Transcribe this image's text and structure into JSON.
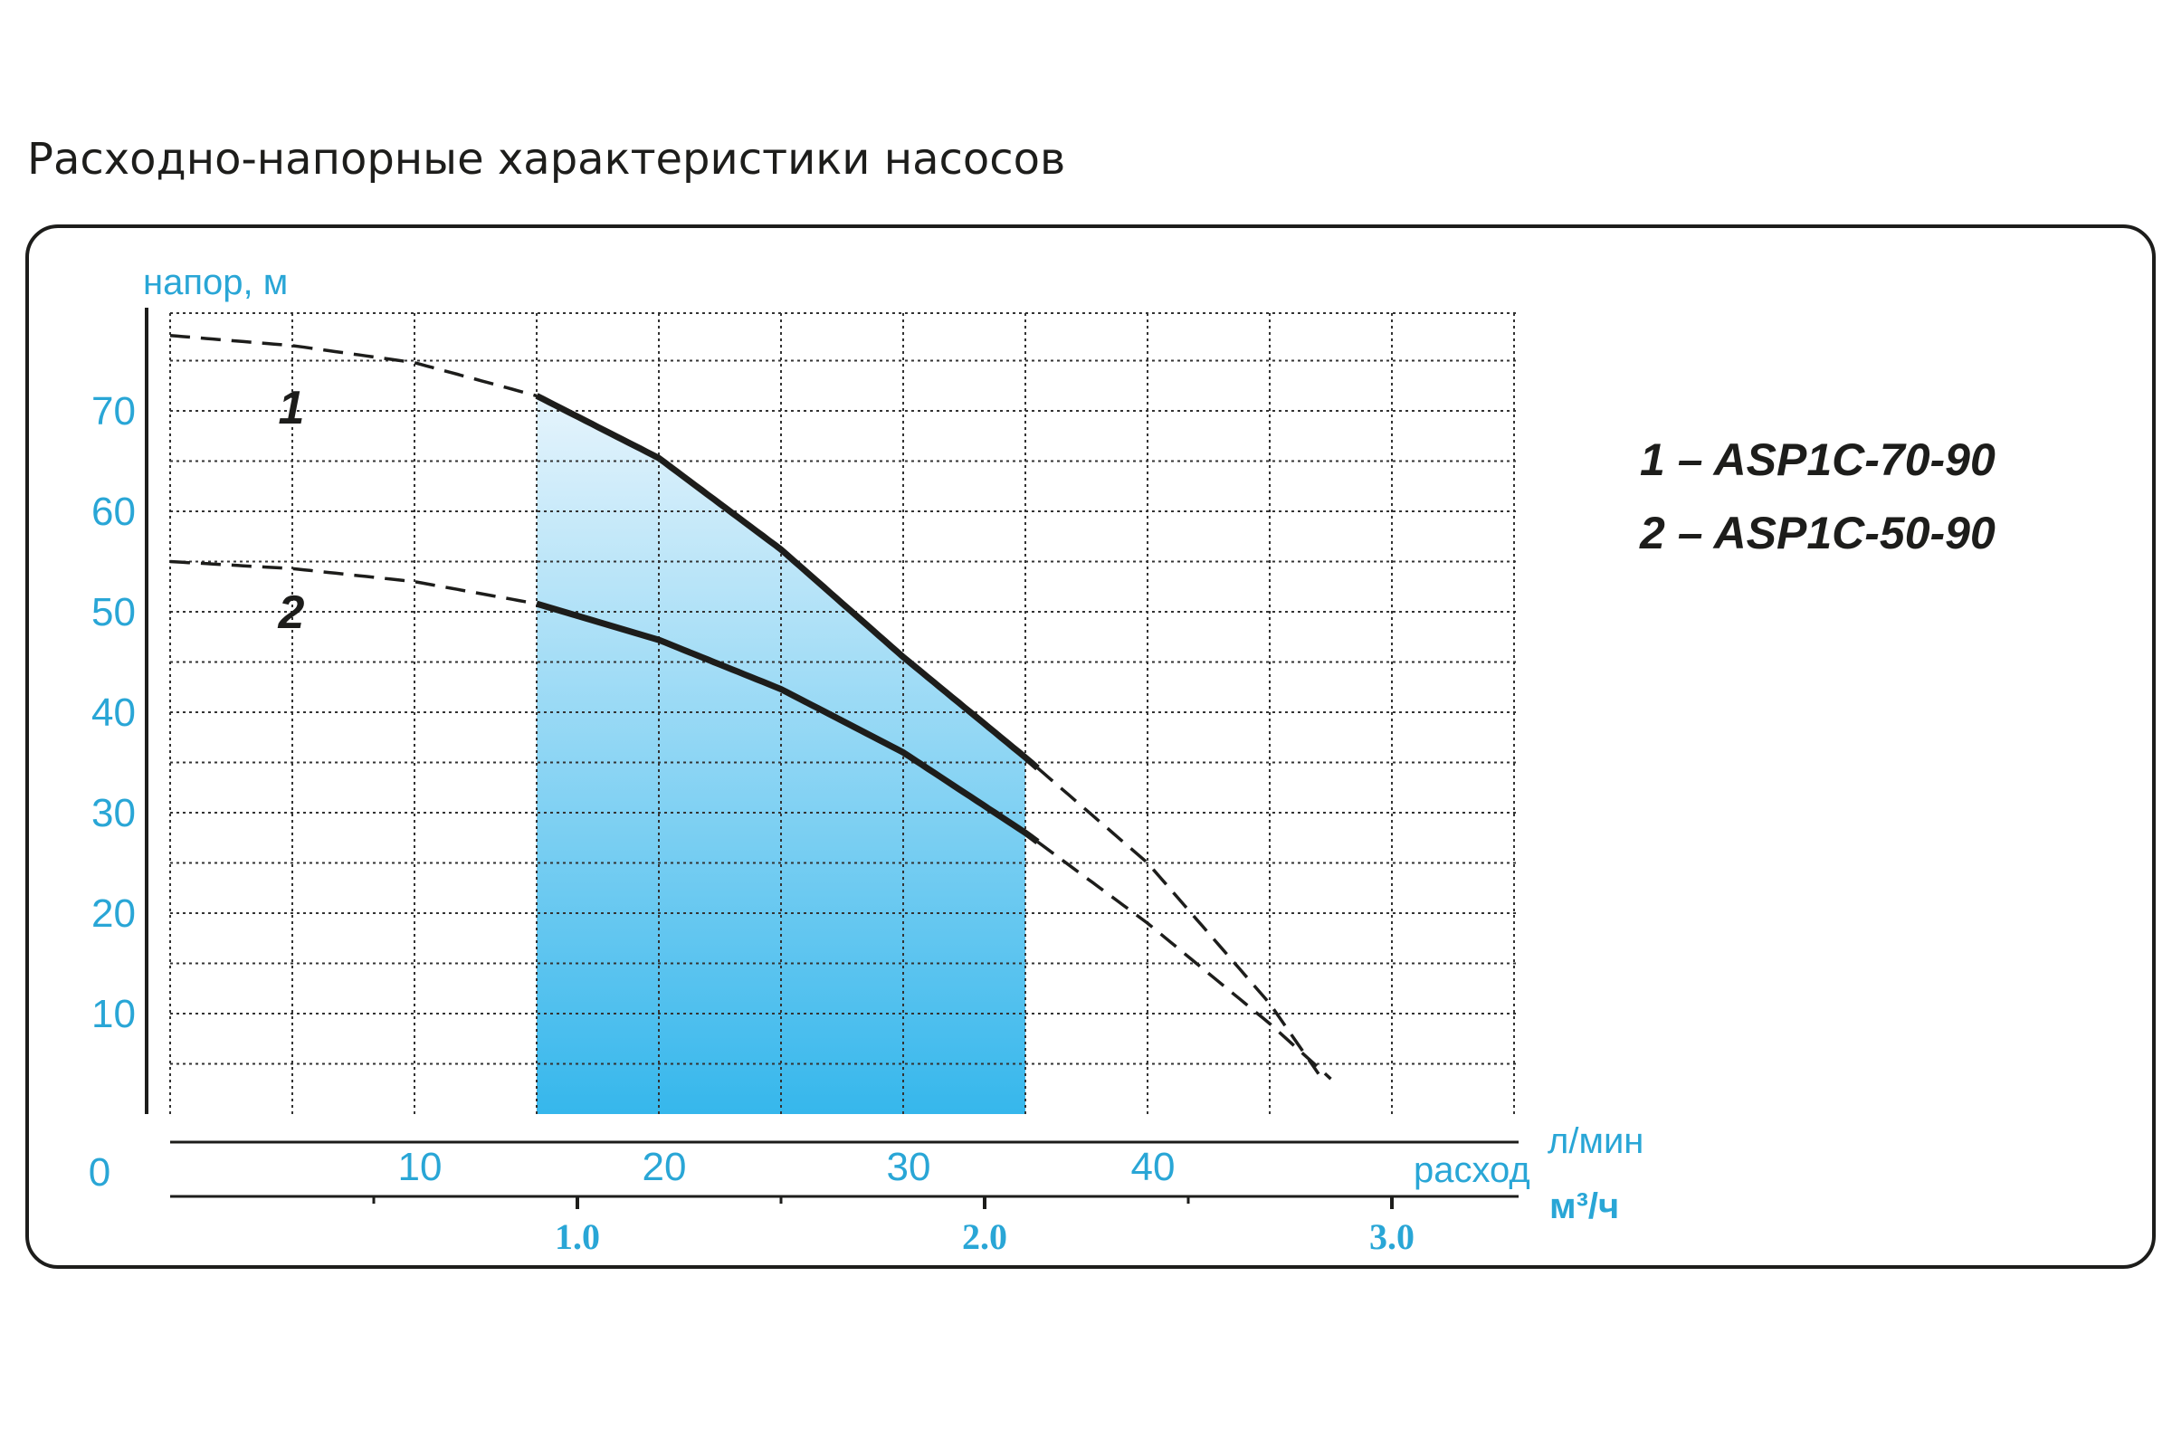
{
  "title": "Расходно-напорные характеристики насосов",
  "colors": {
    "axis_label": "#29a6d6",
    "curve": "#1d1d1b",
    "grid": "#333333",
    "band_top": "#e6f4fc",
    "band_bottom": "#36b7ec"
  },
  "chart_data": {
    "type": "line",
    "ylabel": "напор, м",
    "xlabel": "расход",
    "x_unit_primary": "л/мин",
    "x_unit_secondary": "м³/ч",
    "origin_label": "0",
    "ylim": [
      0,
      80
    ],
    "xlim": [
      0,
      55
    ],
    "y_ticks": [
      10,
      20,
      30,
      40,
      50,
      60,
      70
    ],
    "x_ticks_primary": [
      10,
      20,
      30,
      40
    ],
    "x_ticks_secondary": [
      1.0,
      2.0,
      3.0
    ],
    "x_ticks_secondary_labels": [
      "1.0",
      "2.0",
      "3.0"
    ],
    "grid": true,
    "working_range_x": [
      15,
      35
    ],
    "series": [
      {
        "name": "1 – ASP1C-70-90",
        "marker": "1",
        "points": [
          [
            0,
            77.5
          ],
          [
            5,
            76.5
          ],
          [
            10,
            74.8
          ],
          [
            15,
            71.5
          ],
          [
            20,
            65.3
          ],
          [
            25,
            56.2
          ],
          [
            30,
            45.5
          ],
          [
            35,
            35.5
          ],
          [
            40,
            25
          ],
          [
            45,
            11
          ],
          [
            47,
            4
          ]
        ]
      },
      {
        "name": "2 – ASP1C-50-90",
        "marker": "2",
        "points": [
          [
            0,
            55
          ],
          [
            5,
            54.3
          ],
          [
            10,
            53
          ],
          [
            15,
            50.8
          ],
          [
            20,
            47.2
          ],
          [
            25,
            42.3
          ],
          [
            30,
            36
          ],
          [
            35,
            28
          ],
          [
            40,
            19
          ],
          [
            45,
            9
          ],
          [
            47.5,
            3.5
          ]
        ]
      }
    ],
    "solid_range": [
      15,
      35.5
    ]
  }
}
